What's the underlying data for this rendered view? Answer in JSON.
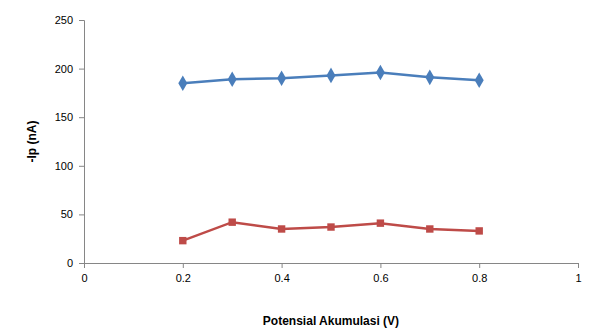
{
  "chart_data": {
    "type": "line",
    "x_label": "Potensial Akumulasi (V)",
    "y_label": "-Ip (nA)",
    "x": [
      0.2,
      0.3,
      0.4,
      0.5,
      0.6,
      0.7,
      0.8
    ],
    "series": [
      {
        "color": "#4a7ebb",
        "marker": "diamond",
        "values": [
          185,
          189,
          190,
          193,
          196,
          191,
          188
        ]
      },
      {
        "color": "#be4b48",
        "marker": "square",
        "values": [
          23,
          42,
          35,
          37,
          41,
          35,
          33
        ]
      }
    ],
    "xlim": [
      0,
      1
    ],
    "xticks": [
      0,
      0.2,
      0.4,
      0.6,
      0.8,
      1
    ],
    "ylim": [
      0,
      250
    ],
    "yticks": [
      0,
      50,
      100,
      150,
      200,
      250
    ],
    "grid": false
  }
}
